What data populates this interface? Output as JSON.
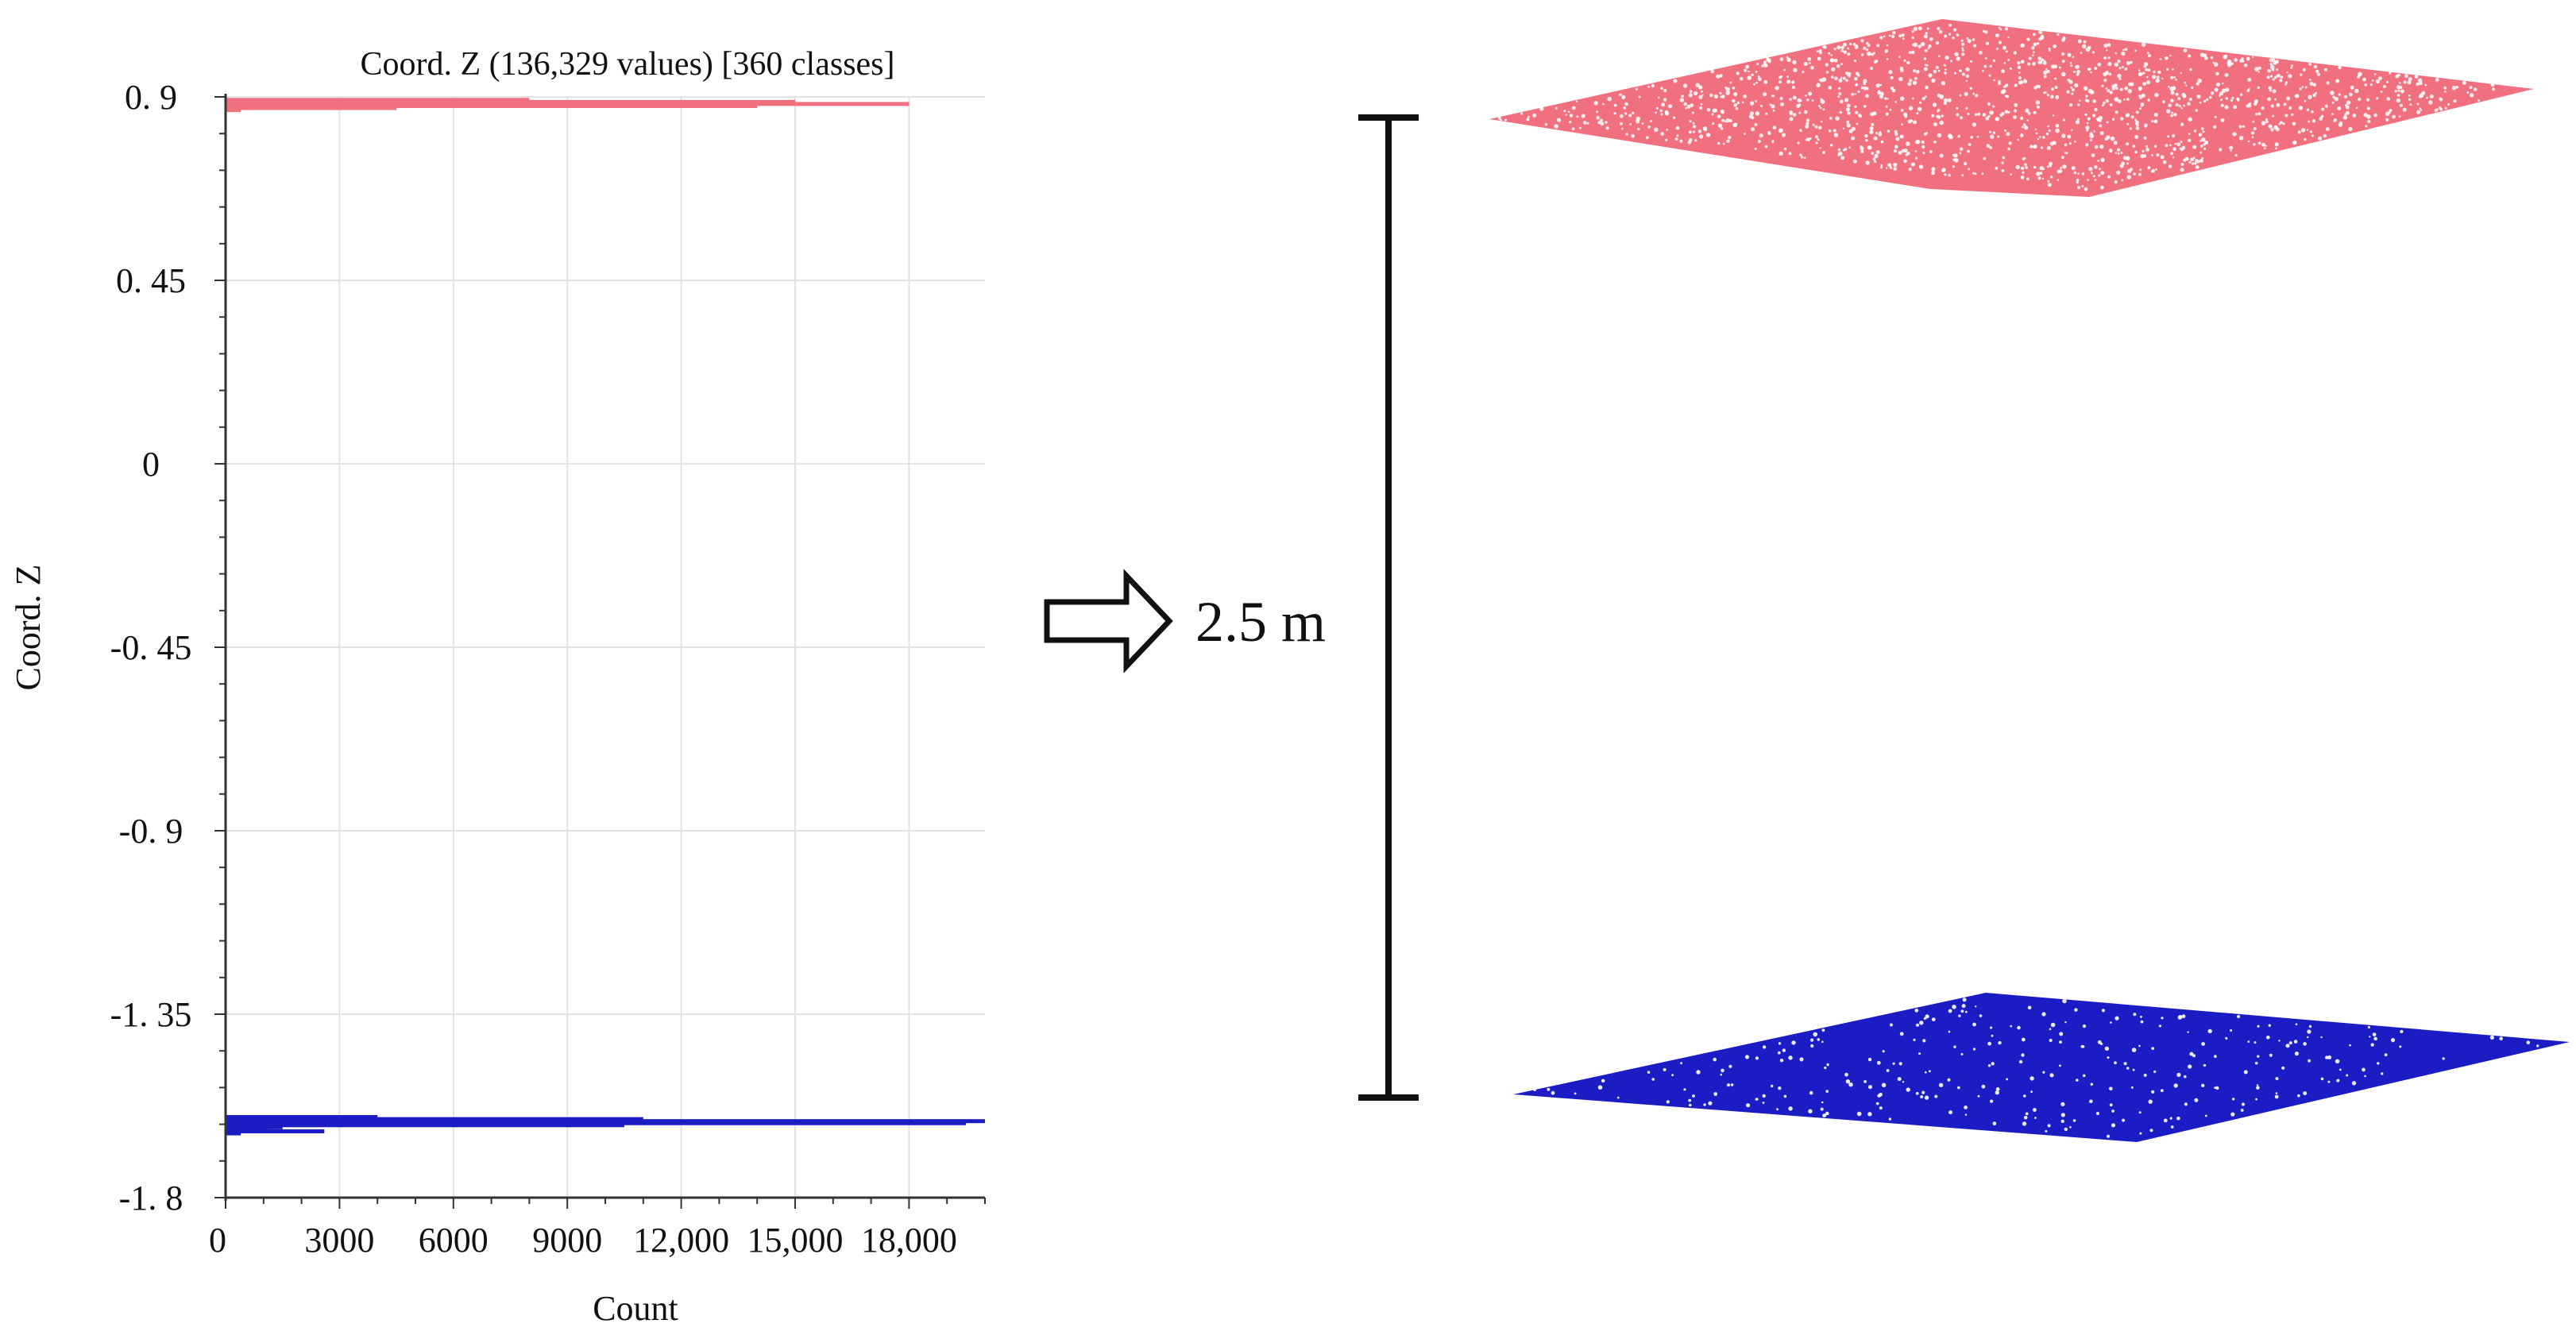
{
  "chart_data": {
    "type": "bar",
    "orientation": "horizontal",
    "title": "Coord. Z (136,329 values) [360 classes]",
    "xlabel": "Count",
    "ylabel": "Coord. Z",
    "xlim": [
      0,
      20000
    ],
    "ylim": [
      -1.8,
      0.9
    ],
    "x_ticks": [
      "0",
      "3000",
      "6000",
      "9000",
      "12,000",
      "15,000",
      "18,000"
    ],
    "x_tick_values": [
      0,
      3000,
      6000,
      9000,
      12000,
      15000,
      18000
    ],
    "y_ticks": [
      "0. 9",
      "0. 45",
      "0",
      "-0. 45",
      "-0. 9",
      "-1. 35",
      "-1. 8"
    ],
    "y_tick_values": [
      0.9,
      0.45,
      0,
      -0.45,
      -0.9,
      -1.35,
      -1.8
    ],
    "grid": true,
    "series": [
      {
        "color": "#f07080",
        "bins": [
          {
            "z": 0.895,
            "count": 8000
          },
          {
            "z": 0.89,
            "count": 15000
          },
          {
            "z": 0.885,
            "count": 18000
          },
          {
            "z": 0.88,
            "count": 14000
          },
          {
            "z": 0.875,
            "count": 4500
          },
          {
            "z": 0.87,
            "count": 400
          }
        ]
      },
      {
        "color": "#1c1cc4",
        "bins": [
          {
            "z": -1.6,
            "count": 4000
          },
          {
            "z": -1.605,
            "count": 11000
          },
          {
            "z": -1.61,
            "count": 20000
          },
          {
            "z": -1.615,
            "count": 19500
          },
          {
            "z": -1.62,
            "count": 10500
          },
          {
            "z": -1.625,
            "count": 1500
          },
          {
            "z": -1.63,
            "count": 1100
          },
          {
            "z": -1.635,
            "count": 2600
          },
          {
            "z": -1.64,
            "count": 400
          }
        ]
      }
    ]
  },
  "annotation": {
    "distance_label": "2.5 m"
  },
  "colors": {
    "upper_plane": "#f07080",
    "lower_plane": "#1c1cc4",
    "grid": "#e2e2e2",
    "axis": "#333333"
  }
}
